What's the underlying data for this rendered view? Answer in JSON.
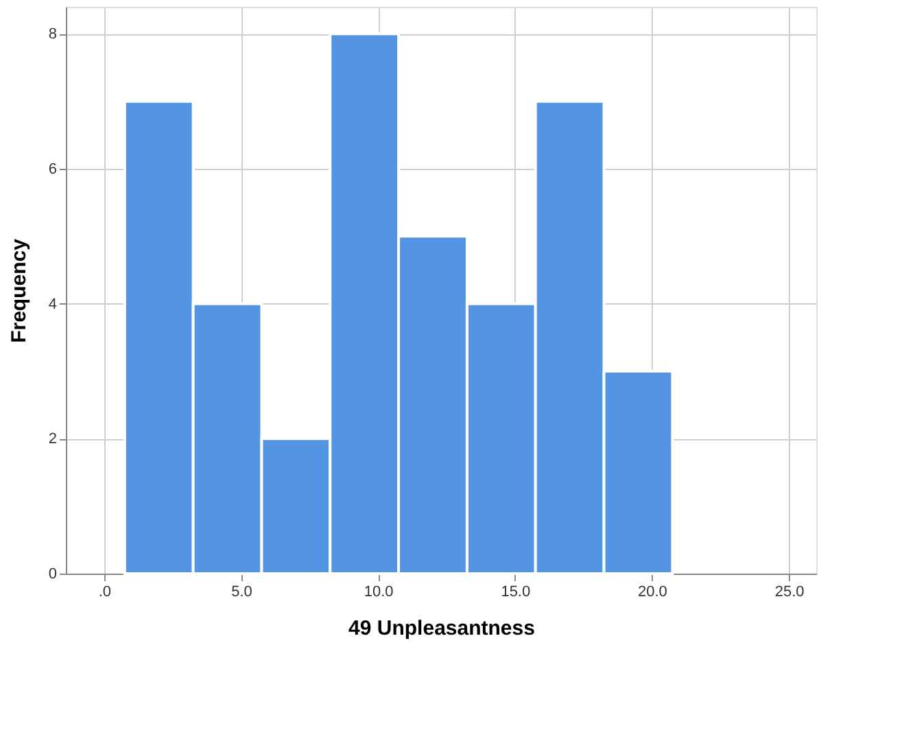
{
  "chart_data": {
    "type": "histogram",
    "xlabel": "49 Unpleasantness",
    "ylabel": "Frequency",
    "bins": [
      0.75,
      3.25,
      5.75,
      8.25,
      10.75,
      13.25,
      15.75,
      18.25,
      20.75
    ],
    "values": [
      7,
      4,
      2,
      8,
      5,
      4,
      7,
      3
    ],
    "color": "#5395e3",
    "xlim": [
      -1.4,
      26
    ],
    "xticks": [
      {
        "value": 0,
        "label": ".0"
      },
      {
        "value": 5,
        "label": "5.0"
      },
      {
        "value": 10,
        "label": "10.0"
      },
      {
        "value": 15,
        "label": "15.0"
      },
      {
        "value": 20,
        "label": "20.0"
      },
      {
        "value": 25,
        "label": "25.0"
      }
    ],
    "ylim": [
      0,
      8.4
    ],
    "yticks": [
      0,
      2,
      4,
      6,
      8
    ],
    "grid": true
  }
}
